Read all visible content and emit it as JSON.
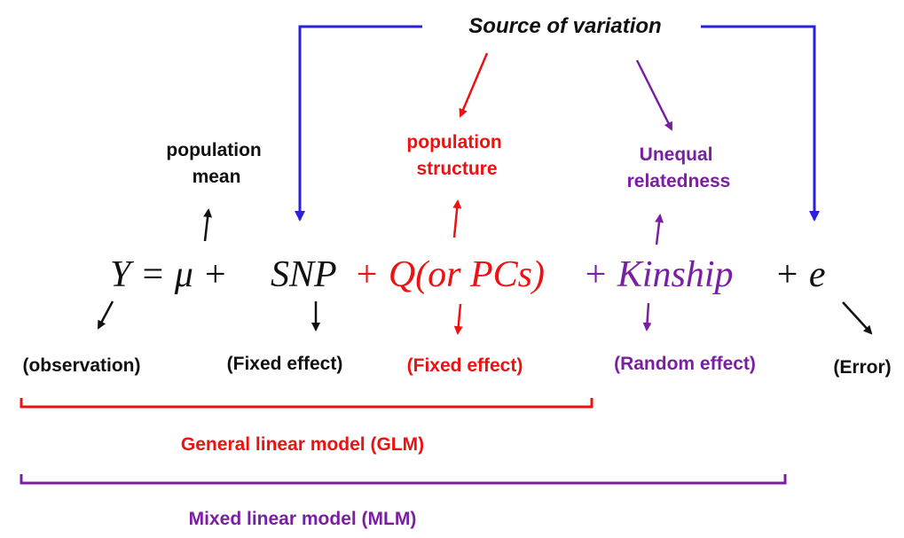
{
  "colors": {
    "black": "#111111",
    "red": "#ee1111",
    "purple": "#7a1fa2",
    "blue": "#2b1fe0"
  },
  "title": "Source of variation",
  "equation": {
    "lhs": "Y = μ +",
    "snp": "SNP",
    "q_term": "+ Q(or PCs)",
    "kinship_term": "+ Kinship",
    "error_term": "+ e"
  },
  "labels": {
    "population_mean": [
      "population",
      "mean"
    ],
    "population_structure": [
      "population",
      "structure"
    ],
    "unequal_relatedness": [
      "Unequal",
      "relatedness"
    ],
    "observation": "(observation)",
    "fixed_effect_snp": "(Fixed effect)",
    "fixed_effect_q": "(Fixed effect)",
    "random_effect": "(Random effect)",
    "error": "(Error)"
  },
  "models": {
    "glm": "General linear model (GLM)",
    "mlm": "Mixed linear model (MLM)"
  }
}
